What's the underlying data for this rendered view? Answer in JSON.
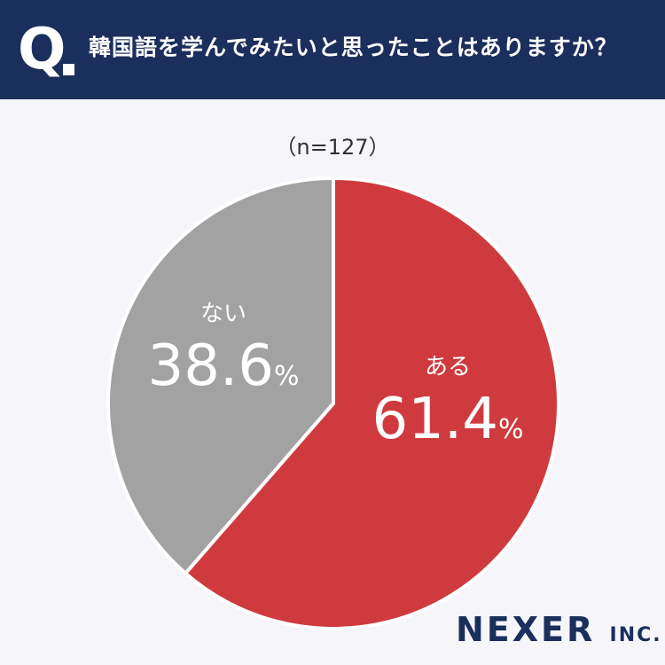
{
  "header": {
    "q_mark": "Q",
    "question": "韓国語を学んでみたいと思ったことはありますか？"
  },
  "sample_size": "（n=127）",
  "chart_data": {
    "type": "pie",
    "categories": [
      "ある",
      "ない"
    ],
    "values": [
      61.4,
      38.6
    ],
    "unit": "%",
    "colors": [
      "#cf3a3e",
      "#a2a2a2"
    ],
    "labels": [
      {
        "name": "ある",
        "value": "61.4",
        "unit": "%"
      },
      {
        "name": "ない",
        "value": "38.6",
        "unit": "%"
      }
    ]
  },
  "logo": {
    "main": "NEXER",
    "suffix": "INC."
  }
}
